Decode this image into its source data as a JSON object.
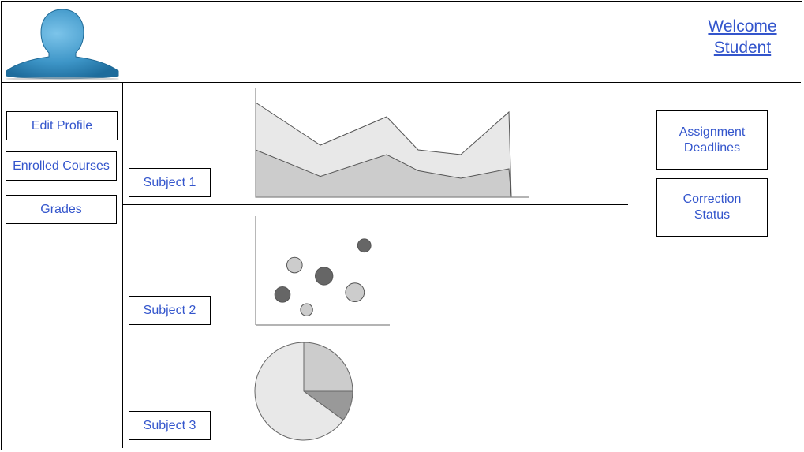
{
  "header": {
    "welcome_line1": "Welcome",
    "welcome_line2": "Student",
    "avatar_icon": "user-silhouette-icon"
  },
  "sidebar": {
    "items": [
      {
        "label": "Edit Profile"
      },
      {
        "label": "Enrolled Courses"
      },
      {
        "label": "Grades"
      }
    ]
  },
  "subjects": [
    {
      "label": "Subject 1"
    },
    {
      "label": "Subject 2"
    },
    {
      "label": "Subject 3"
    }
  ],
  "right_panel": {
    "assignment_deadlines": "Assignment Deadlines",
    "correction_status": "Correction Status"
  },
  "colors": {
    "link": "#3355cc",
    "avatar": "#3d95c7",
    "light_gray": "#e8e8e8",
    "mid_gray": "#cccccc",
    "dark_gray": "#666666",
    "pie_dark": "#999999"
  },
  "chart_data": [
    {
      "type": "area",
      "series": [
        {
          "values": [
            100,
            55,
            85,
            50,
            45,
            90
          ]
        },
        {
          "values": [
            50,
            22,
            45,
            28,
            20,
            30
          ]
        }
      ]
    },
    {
      "type": "scatter",
      "points": [
        {
          "x": 20,
          "y": 28,
          "size": 14,
          "color": "#666666"
        },
        {
          "x": 29,
          "y": 55,
          "size": 14,
          "color": "#cccccc"
        },
        {
          "x": 38,
          "y": 14,
          "size": 11,
          "color": "#cccccc"
        },
        {
          "x": 51,
          "y": 45,
          "size": 16,
          "color": "#666666"
        },
        {
          "x": 74,
          "y": 30,
          "size": 17,
          "color": "#cccccc"
        },
        {
          "x": 81,
          "y": 73,
          "size": 12,
          "color": "#666666"
        }
      ]
    },
    {
      "type": "pie",
      "slices": [
        {
          "value": 25,
          "color": "#cccccc"
        },
        {
          "value": 10,
          "color": "#999999"
        },
        {
          "value": 65,
          "color": "#e8e8e8"
        }
      ]
    }
  ]
}
